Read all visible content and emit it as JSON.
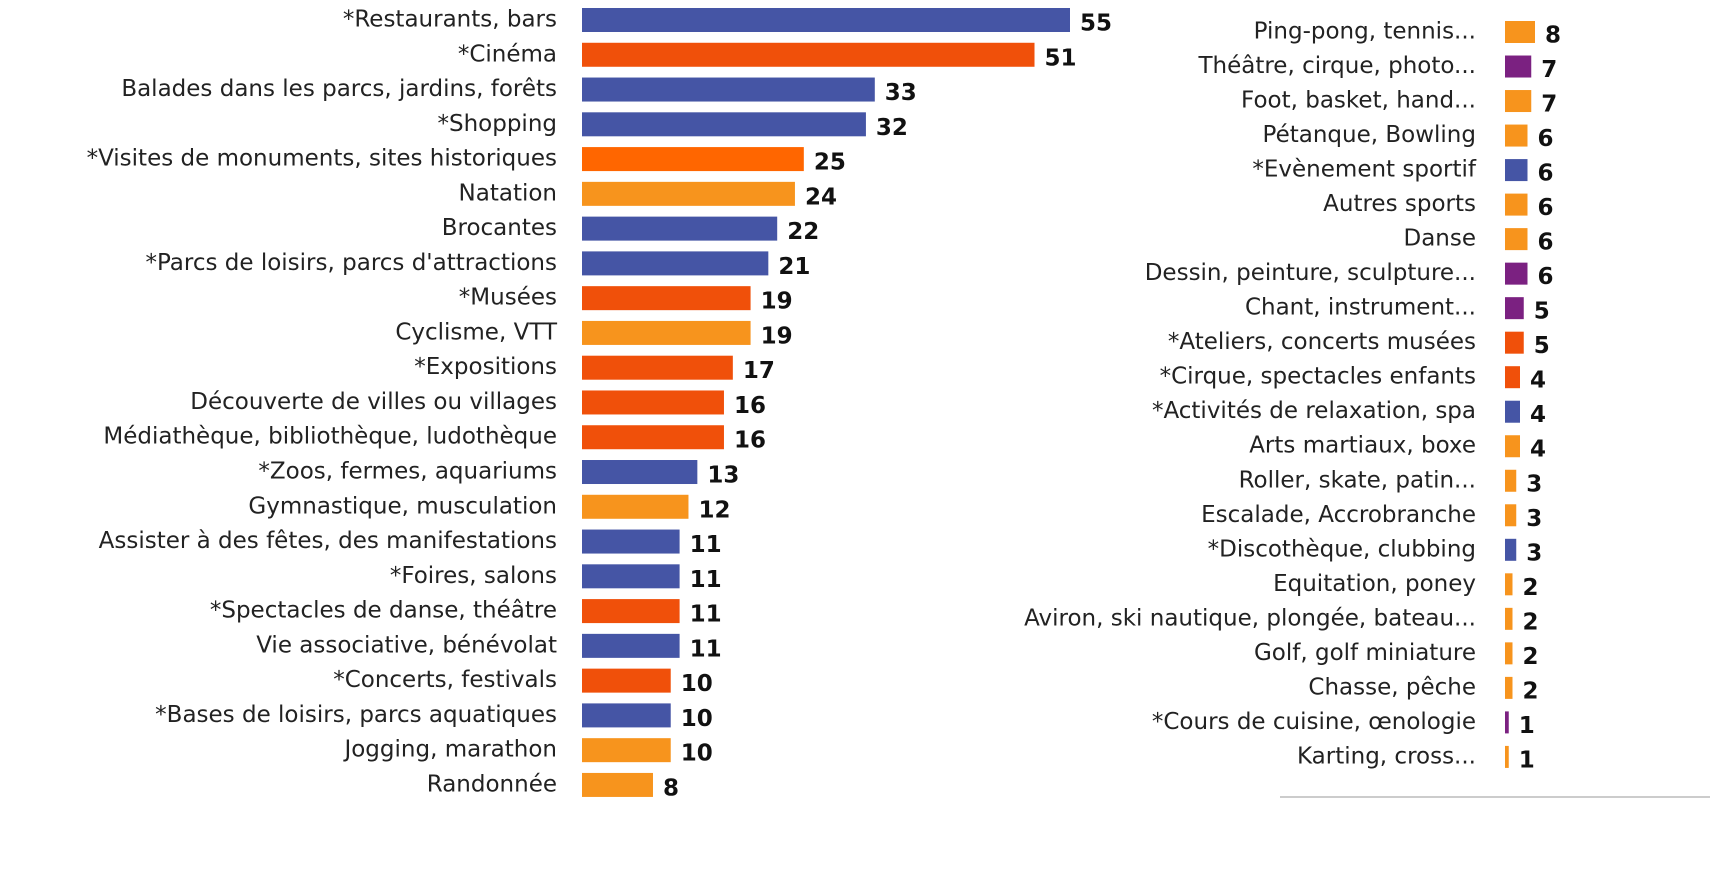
{
  "chart_data": [
    {
      "type": "barh",
      "categories": [
        "*Restaurants, bars",
        "*Cinéma",
        "Balades dans les parcs, jardins, forêts",
        "*Shopping",
        "*Visites de monuments, sites historiques",
        "Natation",
        "Brocantes",
        "*Parcs de loisirs, parcs d'attractions",
        "*Musées",
        "Cyclisme, VTT",
        "*Expositions",
        "Découverte de villes ou villages",
        "Médiathèque, bibliothèque, ludothèque",
        "*Zoos, fermes, aquariums",
        "Gymnastique, musculation",
        "Assister à des fêtes, des manifestations ",
        "*Foires, salons",
        "*Spectacles de danse, théâtre",
        "Vie associative, bénévolat",
        "*Concerts, festivals",
        "*Bases de loisirs, parcs aquatiques",
        "Jogging, marathon",
        "Randonnée"
      ],
      "values": [
        55,
        51,
        33,
        32,
        25,
        24,
        22,
        21,
        19,
        19,
        17,
        16,
        16,
        13,
        12,
        11,
        11,
        11,
        11,
        10,
        10,
        10,
        8
      ],
      "colors": [
        "#4555a5",
        "#f0500a",
        "#4555a5",
        "#4555a5",
        "#ff6600",
        "#f7941d",
        "#4555a5",
        "#4555a5",
        "#f0500a",
        "#f7941d",
        "#f0500a",
        "#f0500a",
        "#f0500a",
        "#4555a5",
        "#f7941d",
        "#4555a5",
        "#4555a5",
        "#f0500a",
        "#4555a5",
        "#f0500a",
        "#4555a5",
        "#f7941d",
        "#f7941d"
      ]
    },
    {
      "type": "barh",
      "categories": [
        "Ping-pong, tennis...",
        "Théâtre, cirque, photo...",
        "Foot, basket, hand...",
        "Pétanque, Bowling",
        "*Evènement sportif",
        "Autres sports",
        "Danse",
        "Dessin, peinture, sculpture...",
        "Chant, instrument...",
        "*Ateliers, concerts musées",
        "*Cirque, spectacles enfants",
        "*Activités de relaxation, spa",
        "Arts martiaux, boxe",
        "Roller, skate, patin...",
        "Escalade, Accrobranche",
        "*Discothèque, clubbing",
        "Equitation, poney",
        "Aviron, ski nautique, plongée, bateau...",
        "Golf, golf miniature",
        "Chasse, pêche",
        "*Cours de cuisine, œnologie",
        "Karting, cross..."
      ],
      "values": [
        8,
        7,
        7,
        6,
        6,
        6,
        6,
        6,
        5,
        5,
        4,
        4,
        4,
        3,
        3,
        3,
        2,
        2,
        2,
        2,
        1,
        1
      ],
      "colors": [
        "#f7941d",
        "#7b2181",
        "#f7941d",
        "#f7941d",
        "#4555a5",
        "#f7941d",
        "#f7941d",
        "#7b2181",
        "#7b2181",
        "#f0500a",
        "#f0500a",
        "#4555a5",
        "#f7941d",
        "#f7941d",
        "#f7941d",
        "#4555a5",
        "#f7941d",
        "#f7941d",
        "#f7941d",
        "#f7941d",
        "#7b2181",
        "#f7941d"
      ]
    }
  ]
}
